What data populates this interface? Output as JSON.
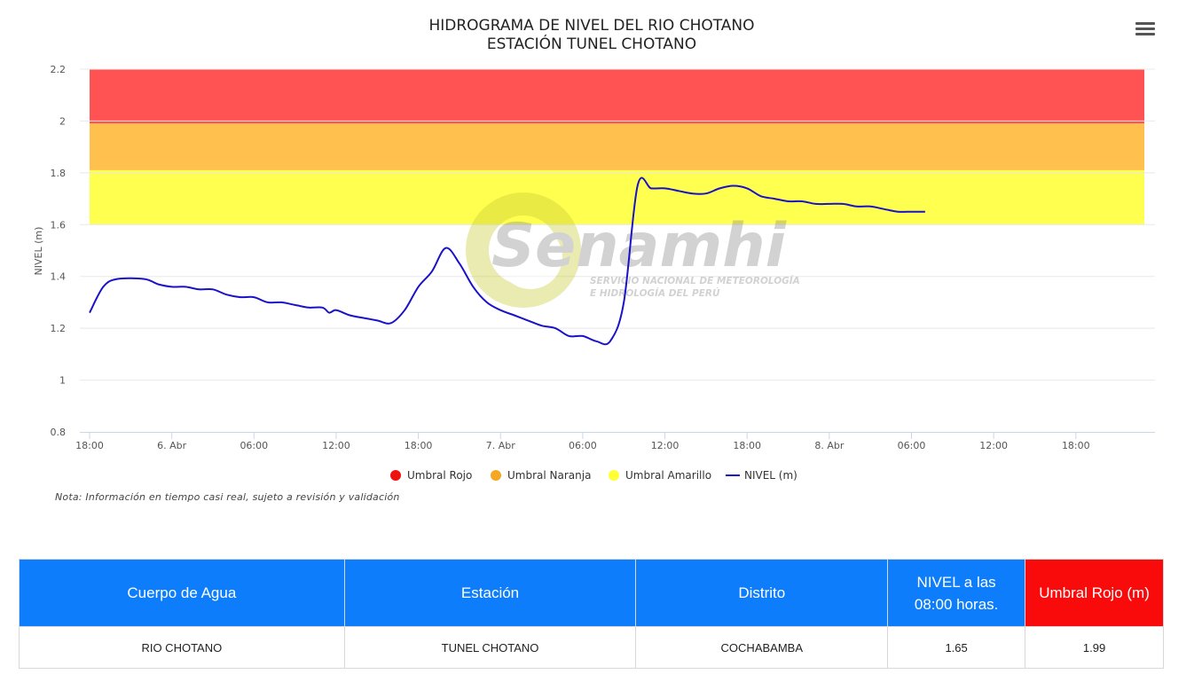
{
  "chart_data": {
    "type": "line",
    "title": "HIDROGRAMA DE NIVEL DEL RIO CHOTANO",
    "subtitle": "ESTACIÓN TUNEL CHOTANO",
    "ylabel": "NIVEL (m)",
    "xlabel": "",
    "ylim": [
      0.8,
      2.2
    ],
    "y_ticks": [
      "0.8",
      "1",
      "1.2",
      "1.4",
      "1.6",
      "1.8",
      "2",
      "2.2"
    ],
    "x_range": [
      "2024-04-05T18:00",
      "2024-04-08T23:00"
    ],
    "x_ticks": [
      {
        "t": "2024-04-05T18:00",
        "label": "18:00"
      },
      {
        "t": "2024-04-06T00:00",
        "label": "6. Abr"
      },
      {
        "t": "2024-04-06T06:00",
        "label": "06:00"
      },
      {
        "t": "2024-04-06T12:00",
        "label": "12:00"
      },
      {
        "t": "2024-04-06T18:00",
        "label": "18:00"
      },
      {
        "t": "2024-04-07T00:00",
        "label": "7. Abr"
      },
      {
        "t": "2024-04-07T06:00",
        "label": "06:00"
      },
      {
        "t": "2024-04-07T12:00",
        "label": "12:00"
      },
      {
        "t": "2024-04-07T18:00",
        "label": "18:00"
      },
      {
        "t": "2024-04-08T00:00",
        "label": "8. Abr"
      },
      {
        "t": "2024-04-08T06:00",
        "label": "06:00"
      },
      {
        "t": "2024-04-08T12:00",
        "label": "12:00"
      },
      {
        "t": "2024-04-08T18:00",
        "label": "18:00"
      }
    ],
    "bands": [
      {
        "name": "Umbral Rojo",
        "from": 1.99,
        "to": 2.2,
        "color": "#ff5252"
      },
      {
        "name": "Umbral Naranja",
        "from": 1.81,
        "to": 1.99,
        "color": "#ffc04d"
      },
      {
        "name": "Umbral Amarillo",
        "from": 1.6,
        "to": 1.81,
        "color": "#ffff4f"
      }
    ],
    "series": [
      {
        "name": "NIVEL (m)",
        "color": "#1a12c8",
        "points": [
          [
            "2024-04-05T18:00",
            1.26
          ],
          [
            "2024-04-05T19:00",
            1.36
          ],
          [
            "2024-04-05T20:00",
            1.39
          ],
          [
            "2024-04-05T22:00",
            1.39
          ],
          [
            "2024-04-05T23:00",
            1.37
          ],
          [
            "2024-04-06T00:00",
            1.36
          ],
          [
            "2024-04-06T01:00",
            1.36
          ],
          [
            "2024-04-06T02:00",
            1.35
          ],
          [
            "2024-04-06T03:00",
            1.35
          ],
          [
            "2024-04-06T04:00",
            1.33
          ],
          [
            "2024-04-06T05:00",
            1.32
          ],
          [
            "2024-04-06T06:00",
            1.32
          ],
          [
            "2024-04-06T07:00",
            1.3
          ],
          [
            "2024-04-06T08:00",
            1.3
          ],
          [
            "2024-04-06T09:00",
            1.29
          ],
          [
            "2024-04-06T10:00",
            1.28
          ],
          [
            "2024-04-06T11:00",
            1.28
          ],
          [
            "2024-04-06T11:30",
            1.26
          ],
          [
            "2024-04-06T12:00",
            1.27
          ],
          [
            "2024-04-06T13:00",
            1.25
          ],
          [
            "2024-04-06T14:00",
            1.24
          ],
          [
            "2024-04-06T15:00",
            1.23
          ],
          [
            "2024-04-06T16:00",
            1.22
          ],
          [
            "2024-04-06T17:00",
            1.27
          ],
          [
            "2024-04-06T18:00",
            1.36
          ],
          [
            "2024-04-06T19:00",
            1.42
          ],
          [
            "2024-04-06T20:00",
            1.51
          ],
          [
            "2024-04-06T21:00",
            1.45
          ],
          [
            "2024-04-06T22:00",
            1.36
          ],
          [
            "2024-04-06T23:00",
            1.3
          ],
          [
            "2024-04-07T00:00",
            1.27
          ],
          [
            "2024-04-07T01:00",
            1.25
          ],
          [
            "2024-04-07T02:00",
            1.23
          ],
          [
            "2024-04-07T03:00",
            1.21
          ],
          [
            "2024-04-07T04:00",
            1.2
          ],
          [
            "2024-04-07T05:00",
            1.17
          ],
          [
            "2024-04-07T06:00",
            1.17
          ],
          [
            "2024-04-07T07:00",
            1.15
          ],
          [
            "2024-04-07T08:00",
            1.15
          ],
          [
            "2024-04-07T09:00",
            1.3
          ],
          [
            "2024-04-07T10:00",
            1.75
          ],
          [
            "2024-04-07T11:00",
            1.74
          ],
          [
            "2024-04-07T12:00",
            1.74
          ],
          [
            "2024-04-07T13:00",
            1.73
          ],
          [
            "2024-04-07T14:00",
            1.72
          ],
          [
            "2024-04-07T15:00",
            1.72
          ],
          [
            "2024-04-07T16:00",
            1.74
          ],
          [
            "2024-04-07T17:00",
            1.75
          ],
          [
            "2024-04-07T18:00",
            1.74
          ],
          [
            "2024-04-07T19:00",
            1.71
          ],
          [
            "2024-04-07T20:00",
            1.7
          ],
          [
            "2024-04-07T21:00",
            1.69
          ],
          [
            "2024-04-07T22:00",
            1.69
          ],
          [
            "2024-04-07T23:00",
            1.68
          ],
          [
            "2024-04-08T00:00",
            1.68
          ],
          [
            "2024-04-08T01:00",
            1.68
          ],
          [
            "2024-04-08T02:00",
            1.67
          ],
          [
            "2024-04-08T03:00",
            1.67
          ],
          [
            "2024-04-08T04:00",
            1.66
          ],
          [
            "2024-04-08T05:00",
            1.65
          ],
          [
            "2024-04-08T06:00",
            1.65
          ],
          [
            "2024-04-08T07:00",
            1.65
          ]
        ]
      }
    ],
    "legend": {
      "placement": "bottom",
      "items": [
        {
          "label": "Umbral Rojo",
          "color": "#ee1111",
          "kind": "dot"
        },
        {
          "label": "Umbral Naranja",
          "color": "#f5a623",
          "kind": "dot"
        },
        {
          "label": "Umbral Amarillo",
          "color": "#ffff33",
          "kind": "dot"
        },
        {
          "label": "NIVEL (m)",
          "color": "#1a12c8",
          "kind": "line"
        }
      ]
    },
    "grid": true
  },
  "watermark": {
    "brand": "Senamhi",
    "line1": "SERVICIO NACIONAL DE METEOROLOGÍA",
    "line2": "E HIDROLOGÍA DEL PERÚ"
  },
  "menu_icon": "hamburger-menu-icon",
  "note": "Nota: Información en tiempo casi real, sujeto a revisión y validación",
  "table": {
    "headers": {
      "cuerpo": "Cuerpo de Agua",
      "estacion": "Estación",
      "distrito": "Distrito",
      "nivel_line1": "NIVEL a las",
      "nivel_line2": "08:00 horas.",
      "umbral": "Umbral Rojo (m)"
    },
    "row": {
      "cuerpo": "RIO CHOTANO",
      "estacion": "TUNEL CHOTANO",
      "distrito": "COCHABAMBA",
      "nivel": "1.65",
      "umbral": "1.99"
    },
    "header_color": "#0d7dfb",
    "umbral_header_color": "#fa0b0b"
  }
}
